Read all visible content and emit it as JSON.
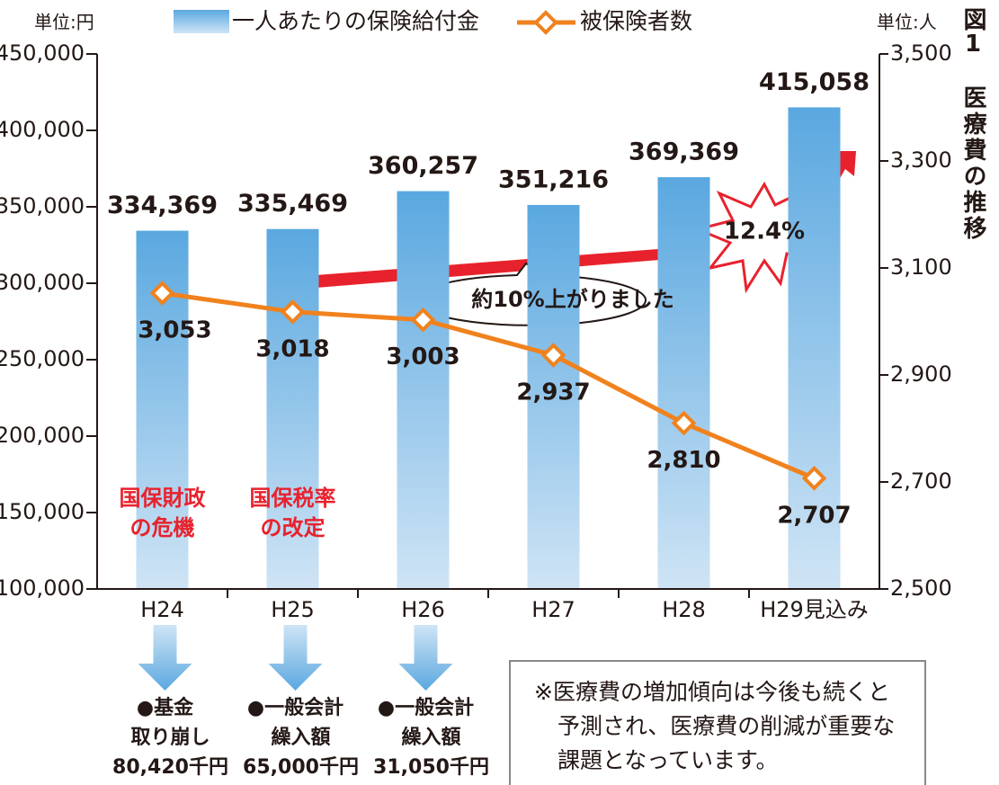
{
  "chart_data": {
    "type": "bar_line",
    "figure_label": "図1",
    "title": "医療費の推移",
    "y_unit": "単位:円",
    "y2_unit": "単位:人",
    "categories": [
      "H24",
      "H25",
      "H26",
      "H27",
      "H28",
      "H29見込み"
    ],
    "series": [
      {
        "name": "一人あたりの保険給付金",
        "type": "bar",
        "color": "#5aa8e0",
        "values": [
          334369,
          335469,
          360257,
          351216,
          369369,
          415058
        ],
        "value_labels": [
          "334,369",
          "335,469",
          "360,257",
          "351,216",
          "369,369",
          "415,058"
        ]
      },
      {
        "name": "被保険者数",
        "type": "line",
        "axis": "y2",
        "color": "#f0821e",
        "values": [
          3053,
          3018,
          3003,
          2937,
          2810,
          2707
        ],
        "value_labels": [
          "3,053",
          "3,018",
          "3,003",
          "2,937",
          "2,810",
          "2,707"
        ]
      }
    ],
    "ylim": [
      100000,
      450000
    ],
    "yticks": [
      {
        "value": 100000,
        "label": "100,000"
      },
      {
        "value": 150000,
        "label": "150,000"
      },
      {
        "value": 200000,
        "label": "200,000"
      },
      {
        "value": 250000,
        "label": "250,000"
      },
      {
        "value": 300000,
        "label": "300,000"
      },
      {
        "value": 350000,
        "label": "350,000"
      },
      {
        "value": 400000,
        "label": "400,000"
      },
      {
        "value": 450000,
        "label": "450,000"
      }
    ],
    "y2lim": [
      2500,
      3500
    ],
    "y2ticks": [
      {
        "value": 2500,
        "label": "2,500"
      },
      {
        "value": 2700,
        "label": "2,700"
      },
      {
        "value": 2900,
        "label": "2,900"
      },
      {
        "value": 3100,
        "label": "3,100"
      },
      {
        "value": 3300,
        "label": "3,300"
      },
      {
        "value": 3500,
        "label": "3,500"
      }
    ],
    "callout": "約10%上がりました",
    "burst": "12.4%",
    "red_notes": [
      [
        "国保財政",
        "の危機"
      ],
      [
        "国保税率",
        "の改定"
      ]
    ],
    "bottom_notes": [
      [
        "●基金",
        "取り崩し",
        "80,420千円"
      ],
      [
        "●一般会計",
        "繰入額",
        "65,000千円"
      ],
      [
        "●一般会計",
        "繰入額",
        "31,050千円"
      ]
    ],
    "note_box": [
      "※医療費の増加傾向は今後も続くと",
      "予測され、医療費の削減が重要な",
      "課題となっています。"
    ]
  }
}
